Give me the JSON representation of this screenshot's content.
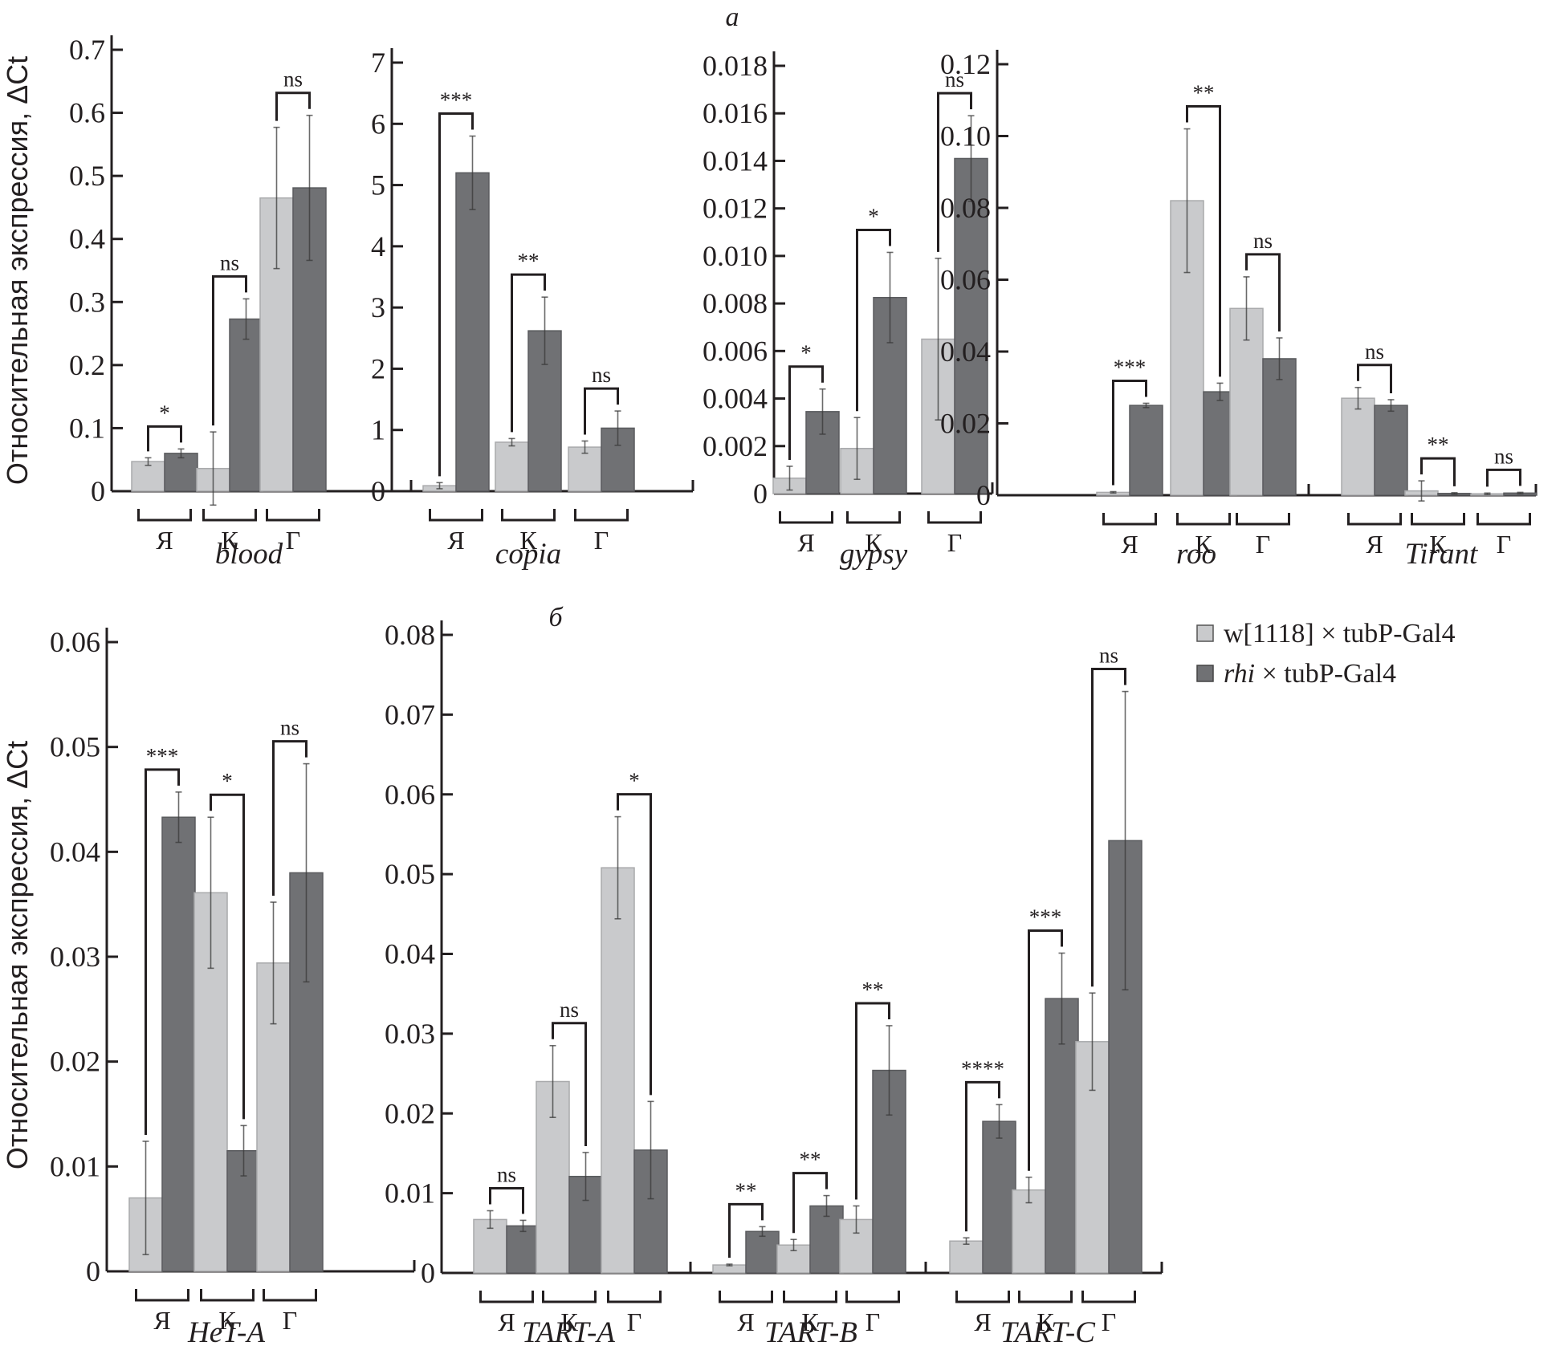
{
  "figure": {
    "panel_letters": {
      "a": "а",
      "b": "б"
    },
    "ylabel": "Относительная экспрессия, ΔCt",
    "legend": [
      {
        "label_prefix": "w[1118]",
        "label_italic": "",
        "label_suffix": " × tubP-Gal4",
        "color": "#c9cacc"
      },
      {
        "label_prefix": "",
        "label_italic": "rhi",
        "label_suffix": " × tubP-Gal4",
        "color": "#707174"
      }
    ],
    "group_labels": [
      "Я",
      "К",
      "Г"
    ]
  },
  "chart_data": [
    {
      "type": "bar",
      "panel": "а",
      "title": "",
      "xlabel": "blood",
      "ylabel": "Относительная экспрессия, ΔCt",
      "ylim": [
        0,
        0.7
      ],
      "yticks": [
        "0",
        "0.1",
        "0.2",
        "0.3",
        "0.4",
        "0.5",
        "0.6",
        "0.7"
      ],
      "categories": [
        "Я",
        "К",
        "Г"
      ],
      "series": [
        {
          "name": "w[1118] × tubP-Gal4",
          "values": [
            0.047,
            0.036,
            0.465
          ],
          "errors": [
            0.006,
            0.058,
            0.112
          ]
        },
        {
          "name": "rhi × tubP-Gal4",
          "values": [
            0.06,
            0.273,
            0.481
          ],
          "errors": [
            0.007,
            0.032,
            0.115
          ]
        }
      ],
      "significance": [
        "*",
        "ns",
        "ns"
      ]
    },
    {
      "type": "bar",
      "panel": "а",
      "title": "",
      "xlabel": "copia",
      "ylabel": "",
      "ylim": [
        0,
        7
      ],
      "yticks": [
        "0",
        "1",
        "2",
        "3",
        "4",
        "5",
        "6",
        "7"
      ],
      "categories": [
        "Я",
        "К",
        "Г"
      ],
      "series": [
        {
          "name": "w[1118] × tubP-Gal4",
          "values": [
            0.09,
            0.8,
            0.72
          ],
          "errors": [
            0.05,
            0.06,
            0.1
          ]
        },
        {
          "name": "rhi × tubP-Gal4",
          "values": [
            5.2,
            2.62,
            1.03
          ],
          "errors": [
            0.6,
            0.55,
            0.28
          ]
        }
      ],
      "significance": [
        "***",
        "**",
        "ns"
      ]
    },
    {
      "type": "bar",
      "panel": "а",
      "title": "",
      "xlabel": "gypsy",
      "ylabel": "",
      "ylim": [
        0,
        0.018
      ],
      "yticks": [
        "0",
        "0.002",
        "0.004",
        "0.006",
        "0.008",
        "0.010",
        "0.012",
        "0.014",
        "0.016",
        "0.018"
      ],
      "categories": [
        "Я",
        "К",
        "Г"
      ],
      "series": [
        {
          "name": "w[1118] × tubP-Gal4",
          "values": [
            0.00065,
            0.0019,
            0.0065
          ],
          "errors": [
            0.0005,
            0.0013,
            0.0034
          ]
        },
        {
          "name": "rhi × tubP-Gal4",
          "values": [
            0.00345,
            0.00825,
            0.0141
          ],
          "errors": [
            0.00095,
            0.0019,
            0.0018
          ]
        }
      ],
      "significance": [
        "*",
        "*",
        "ns"
      ]
    },
    {
      "type": "bar",
      "panel": "а",
      "title": "",
      "xlabel": "roo",
      "ylabel": "",
      "ylim": [
        0,
        0.12
      ],
      "yticks": [
        "0",
        "0.02",
        "0.04",
        "0.06",
        "0.08",
        "0.10",
        "0.12"
      ],
      "categories": [
        "Я",
        "К",
        "Г"
      ],
      "series": [
        {
          "name": "w[1118] × tubP-Gal4",
          "values": [
            0.0008,
            0.082,
            0.052
          ],
          "errors": [
            0.0002,
            0.02,
            0.0088
          ]
        },
        {
          "name": "rhi × tubP-Gal4",
          "values": [
            0.025,
            0.0288,
            0.038
          ],
          "errors": [
            0.0006,
            0.0024,
            0.0058
          ]
        }
      ],
      "significance": [
        "***",
        "**",
        "ns"
      ]
    },
    {
      "type": "bar",
      "panel": "а",
      "title": "",
      "xlabel": "Tirant",
      "ylabel": "",
      "ylim": [
        0,
        0.12
      ],
      "yticks": [],
      "categories": [
        "Я",
        "К",
        "Г"
      ],
      "series": [
        {
          "name": "w[1118] × tubP-Gal4",
          "values": [
            0.027,
            0.0012,
            0.0004
          ],
          "errors": [
            0.003,
            0.0028,
            0.0002
          ]
        },
        {
          "name": "rhi × tubP-Gal4",
          "values": [
            0.025,
            0.0005,
            0.0006
          ],
          "errors": [
            0.0016,
            0.0002,
            0.0002
          ]
        }
      ],
      "significance": [
        "ns",
        "**",
        "ns"
      ]
    },
    {
      "type": "bar",
      "panel": "б",
      "title": "",
      "xlabel": "HeT-A",
      "ylabel": "Относительная экспрессия, ΔCt",
      "ylim": [
        0,
        0.06
      ],
      "yticks": [
        "0",
        "0.01",
        "0.02",
        "0.03",
        "0.04",
        "0.05",
        "0.06"
      ],
      "categories": [
        "Я",
        "К",
        "Г"
      ],
      "series": [
        {
          "name": "w[1118] × tubP-Gal4",
          "values": [
            0.007,
            0.0361,
            0.0294
          ],
          "errors": [
            0.0054,
            0.0072,
            0.0058
          ]
        },
        {
          "name": "rhi × tubP-Gal4",
          "values": [
            0.0433,
            0.0115,
            0.038
          ],
          "errors": [
            0.0024,
            0.0024,
            0.0104
          ]
        }
      ],
      "significance": [
        "***",
        "*",
        "ns"
      ]
    },
    {
      "type": "bar",
      "panel": "б",
      "title": "",
      "xlabel": "TART-A",
      "ylabel": "",
      "ylim": [
        0,
        0.08
      ],
      "yticks": [
        "0",
        "0.01",
        "0.02",
        "0.03",
        "0.04",
        "0.05",
        "0.06",
        "0.07",
        "0.08"
      ],
      "categories": [
        "Я",
        "К",
        "Г"
      ],
      "series": [
        {
          "name": "w[1118] × tubP-Gal4",
          "values": [
            0.0067,
            0.024,
            0.0508
          ],
          "errors": [
            0.0011,
            0.0045,
            0.0064
          ]
        },
        {
          "name": "rhi × tubP-Gal4",
          "values": [
            0.0059,
            0.0121,
            0.0154
          ],
          "errors": [
            0.0007,
            0.003,
            0.0061
          ]
        }
      ],
      "significance": [
        "ns",
        "ns",
        "*"
      ]
    },
    {
      "type": "bar",
      "panel": "б",
      "title": "",
      "xlabel": "TART-B",
      "ylabel": "",
      "ylim": [
        0,
        0.08
      ],
      "yticks": [],
      "categories": [
        "Я",
        "К",
        "Г"
      ],
      "series": [
        {
          "name": "w[1118] × tubP-Gal4",
          "values": [
            0.001,
            0.0035,
            0.0067
          ],
          "errors": [
            0.0001,
            0.0007,
            0.0017
          ]
        },
        {
          "name": "rhi × tubP-Gal4",
          "values": [
            0.0052,
            0.0084,
            0.0254
          ],
          "errors": [
            0.0006,
            0.0013,
            0.0056
          ]
        }
      ],
      "significance": [
        "**",
        "**",
        "**"
      ]
    },
    {
      "type": "bar",
      "panel": "б",
      "title": "",
      "xlabel": "TART-C",
      "ylabel": "",
      "ylim": [
        0,
        0.08
      ],
      "yticks": [],
      "categories": [
        "Я",
        "К",
        "Г"
      ],
      "series": [
        {
          "name": "w[1118] × tubP-Gal4",
          "values": [
            0.004,
            0.0104,
            0.029
          ],
          "errors": [
            0.0004,
            0.0016,
            0.0061
          ]
        },
        {
          "name": "rhi × tubP-Gal4",
          "values": [
            0.019,
            0.0344,
            0.0542
          ],
          "errors": [
            0.0021,
            0.0057,
            0.0187
          ]
        }
      ],
      "significance": [
        "****",
        "***",
        "ns"
      ]
    }
  ]
}
